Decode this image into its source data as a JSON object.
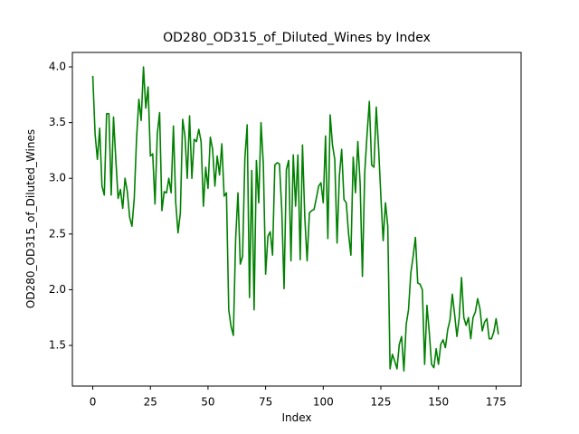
{
  "chart_data": {
    "type": "line",
    "title": "OD280_OD315_of_Diluted_Wines by Index",
    "x_label": "Index",
    "y_label": "OD280_OD315_of_Diluted_Wines",
    "series": [
      {
        "color": "#008000",
        "values": [
          3.92,
          3.4,
          3.17,
          3.45,
          2.93,
          2.85,
          3.58,
          3.58,
          2.85,
          3.55,
          3.17,
          2.82,
          2.9,
          2.73,
          3.0,
          2.88,
          2.65,
          2.57,
          2.82,
          3.36,
          3.71,
          3.52,
          4.0,
          3.63,
          3.82,
          3.2,
          3.22,
          2.77,
          3.4,
          3.59,
          2.71,
          2.88,
          2.87,
          3.0,
          2.87,
          3.47,
          2.78,
          2.51,
          2.69,
          3.53,
          3.38,
          3.0,
          3.56,
          3.0,
          3.35,
          3.33,
          3.44,
          3.33,
          2.75,
          3.1,
          2.91,
          3.37,
          3.26,
          2.93,
          3.2,
          3.03,
          3.31,
          2.84,
          2.87,
          1.82,
          1.67,
          1.59,
          2.46,
          2.87,
          2.23,
          2.3,
          3.18,
          3.48,
          1.93,
          3.07,
          1.82,
          3.16,
          2.78,
          3.5,
          3.13,
          2.14,
          2.48,
          2.52,
          2.31,
          3.12,
          3.14,
          3.13,
          2.72,
          2.01,
          3.08,
          3.16,
          2.26,
          3.21,
          2.75,
          3.21,
          2.27,
          3.3,
          2.65,
          2.26,
          2.69,
          2.71,
          2.72,
          2.82,
          2.93,
          2.96,
          2.78,
          3.38,
          2.46,
          3.57,
          3.3,
          3.17,
          2.42,
          3.02,
          3.26,
          2.81,
          2.78,
          2.5,
          2.31,
          3.19,
          2.87,
          3.33,
          2.96,
          2.12,
          3.05,
          3.39,
          3.69,
          3.12,
          3.1,
          3.64,
          3.28,
          2.84,
          2.44,
          2.78,
          2.57,
          1.29,
          1.42,
          1.36,
          1.29,
          1.51,
          1.58,
          1.27,
          1.69,
          1.82,
          2.15,
          2.3,
          2.47,
          2.06,
          2.05,
          2.0,
          1.33,
          1.86,
          1.62,
          1.33,
          1.3,
          1.47,
          1.33,
          1.51,
          1.55,
          1.48,
          1.64,
          1.73,
          1.96,
          1.78,
          1.58,
          1.75,
          2.11,
          1.75,
          1.68,
          1.75,
          1.56,
          1.75,
          1.8,
          1.92,
          1.83,
          1.63,
          1.71,
          1.74,
          1.56,
          1.56,
          1.62,
          1.74,
          1.6
        ]
      }
    ],
    "xlim": [
      -8.85,
      185.85
    ],
    "xticks": [
      0,
      25,
      50,
      75,
      100,
      125,
      150,
      175
    ],
    "ylim": [
      1.135,
      4.13
    ],
    "yticks": [
      {
        "value": 1.5,
        "label": "1.5"
      },
      {
        "value": 2,
        "label": "2.0"
      },
      {
        "value": 2.5,
        "label": "2.5"
      },
      {
        "value": 3,
        "label": "3.0"
      },
      {
        "value": 3.5,
        "label": "3.5"
      },
      {
        "value": 4,
        "label": "4.0"
      }
    ]
  }
}
